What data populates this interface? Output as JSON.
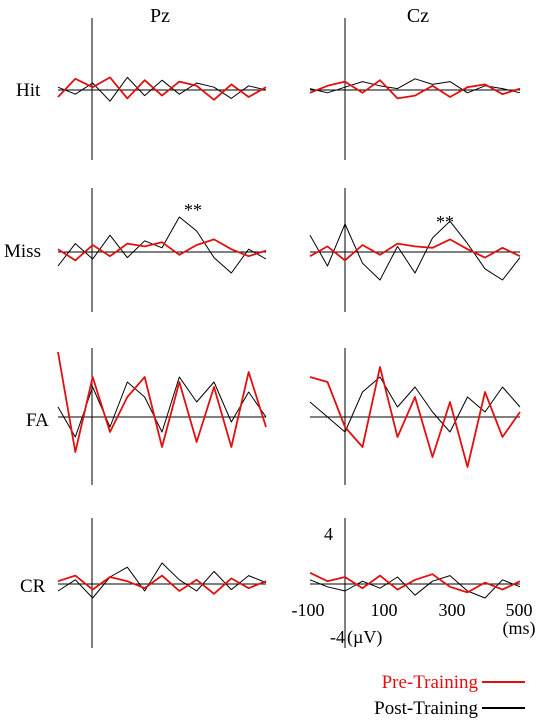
{
  "chart_data": {
    "type": "line",
    "columns": [
      "Pz",
      "Cz"
    ],
    "conditions": [
      "Hit",
      "Miss",
      "FA",
      "CR"
    ],
    "x_unit": "(ms)",
    "y_unit": "(µV)",
    "x_ticks": [
      -100,
      100,
      300,
      500
    ],
    "y_ticks": [
      4,
      -4
    ],
    "xlim": [
      -100,
      500
    ],
    "ylim": [
      -4,
      4
    ],
    "legend_position": "bottom-right",
    "series": [
      {
        "name": "Pre-Training",
        "color": "#e01010"
      },
      {
        "name": "Post-Training",
        "color": "#000000"
      }
    ],
    "annotations": [
      {
        "panel": "Miss-Pz",
        "text": "**",
        "x": 220
      },
      {
        "panel": "Miss-Cz",
        "text": "**",
        "x": 280
      }
    ],
    "panels": [
      {
        "condition": "Hit",
        "electrode": "Pz",
        "x": [
          -100,
          -50,
          0,
          50,
          100,
          150,
          200,
          250,
          300,
          350,
          400,
          450,
          500
        ],
        "pre": [
          -0.5,
          0.8,
          0.2,
          0.9,
          -0.6,
          0.7,
          -0.4,
          0.6,
          0.3,
          -0.7,
          0.4,
          -0.5,
          0.2
        ],
        "post": [
          0.2,
          -0.3,
          0.5,
          -0.8,
          0.9,
          -0.4,
          0.7,
          -0.3,
          0.5,
          0.2,
          -0.6,
          0.3,
          0.0
        ]
      },
      {
        "condition": "Hit",
        "electrode": "Cz",
        "x": [
          -100,
          -50,
          0,
          50,
          100,
          150,
          200,
          250,
          300,
          350,
          400,
          450,
          500
        ],
        "pre": [
          -0.2,
          0.3,
          0.6,
          -0.2,
          0.7,
          -0.6,
          -0.4,
          0.3,
          -0.5,
          0.2,
          0.4,
          -0.3,
          0.1
        ],
        "post": [
          0.1,
          -0.2,
          0.2,
          0.6,
          0.3,
          0.1,
          0.8,
          0.4,
          0.6,
          -0.2,
          0.3,
          0.1,
          -0.2
        ]
      },
      {
        "condition": "Miss",
        "electrode": "Pz",
        "x": [
          -100,
          -50,
          0,
          50,
          100,
          150,
          200,
          250,
          300,
          350,
          400,
          450,
          500
        ],
        "pre": [
          0.2,
          -0.6,
          0.5,
          -0.3,
          0.6,
          0.4,
          0.7,
          -0.2,
          0.5,
          0.9,
          0.2,
          -0.3,
          0.1
        ],
        "post": [
          -1.0,
          0.6,
          -0.5,
          1.2,
          -0.4,
          0.8,
          0.3,
          2.5,
          1.5,
          -0.4,
          -1.5,
          0.2,
          -0.5
        ]
      },
      {
        "condition": "Miss",
        "electrode": "Cz",
        "x": [
          -100,
          -50,
          0,
          50,
          100,
          150,
          200,
          250,
          300,
          350,
          400,
          450,
          500
        ],
        "pre": [
          -0.3,
          0.4,
          -0.6,
          0.5,
          -0.2,
          0.6,
          0.4,
          0.3,
          0.9,
          0.2,
          -0.4,
          0.3,
          -0.3
        ],
        "post": [
          1.2,
          -1.0,
          2.0,
          -0.8,
          -2.0,
          0.4,
          -1.5,
          1.0,
          2.2,
          0.6,
          -1.2,
          -2.0,
          -0.4
        ]
      },
      {
        "condition": "FA",
        "electrode": "Pz",
        "x": [
          -100,
          -50,
          0,
          50,
          100,
          150,
          200,
          250,
          300,
          350,
          400,
          450,
          500
        ],
        "pre": [
          6.5,
          -3.5,
          4.0,
          -1.5,
          2.0,
          4.0,
          -3.0,
          3.5,
          -2.5,
          3.0,
          -3.0,
          4.5,
          -1.0
        ],
        "post": [
          1.0,
          -2.0,
          3.0,
          -1.0,
          3.5,
          2.0,
          -1.5,
          4.0,
          1.5,
          3.5,
          -0.5,
          2.5,
          0.0
        ]
      },
      {
        "condition": "FA",
        "electrode": "Cz",
        "x": [
          -100,
          -50,
          0,
          50,
          100,
          150,
          200,
          250,
          300,
          350,
          400,
          450,
          500
        ],
        "pre": [
          4.0,
          3.5,
          -1.0,
          -3.0,
          5.0,
          -2.0,
          2.0,
          -4.0,
          1.5,
          -5.0,
          2.5,
          -2.0,
          0.5
        ],
        "post": [
          1.5,
          0.0,
          -1.5,
          2.5,
          4.0,
          1.0,
          3.0,
          0.5,
          -1.5,
          2.0,
          0.5,
          3.0,
          1.0
        ]
      },
      {
        "condition": "CR",
        "electrode": "Pz",
        "x": [
          -100,
          -50,
          0,
          50,
          100,
          150,
          200,
          250,
          300,
          350,
          400,
          450,
          500
        ],
        "pre": [
          0.2,
          0.6,
          -0.4,
          0.5,
          0.2,
          -0.3,
          0.6,
          -0.5,
          0.3,
          -0.7,
          0.4,
          -0.3,
          0.2
        ],
        "post": [
          -0.5,
          0.3,
          -1.0,
          0.5,
          1.2,
          -0.5,
          1.5,
          0.3,
          -0.5,
          0.9,
          -0.4,
          0.6,
          0.1
        ]
      },
      {
        "condition": "CR",
        "electrode": "Cz",
        "x": [
          -100,
          -50,
          0,
          50,
          100,
          150,
          200,
          250,
          300,
          350,
          400,
          450,
          500
        ],
        "pre": [
          0.8,
          0.2,
          0.5,
          -0.3,
          0.6,
          -0.4,
          0.3,
          0.7,
          -0.2,
          -0.6,
          0.1,
          -0.4,
          0.2
        ],
        "post": [
          0.3,
          -0.2,
          -0.5,
          0.2,
          -0.3,
          0.5,
          -0.8,
          0.2,
          0.6,
          -0.5,
          -1.0,
          0.3,
          -0.2
        ]
      }
    ]
  }
}
